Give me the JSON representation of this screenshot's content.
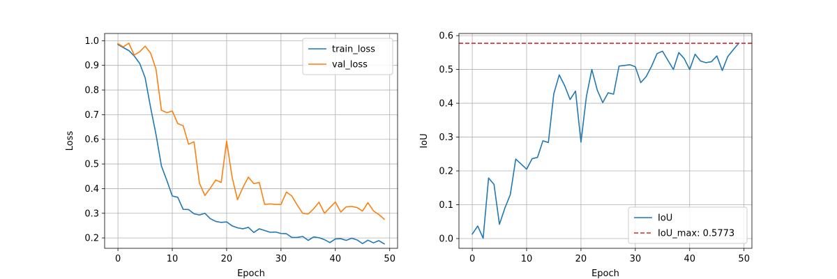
{
  "chart_data": [
    {
      "type": "line",
      "title": "",
      "xlabel": "Epoch",
      "ylabel": "Loss",
      "xlim": [
        -2.45,
        51.45
      ],
      "ylim": [
        0.1579,
        1.0293
      ],
      "xticks": [
        0,
        10,
        20,
        30,
        40,
        50
      ],
      "yticks": [
        0.2,
        0.3,
        0.4,
        0.5,
        0.6,
        0.7,
        0.8,
        0.9,
        1.0
      ],
      "grid": true,
      "legend_position": "top-right",
      "x": [
        0,
        1,
        2,
        3,
        4,
        5,
        6,
        7,
        8,
        9,
        10,
        11,
        12,
        13,
        14,
        15,
        16,
        17,
        18,
        19,
        20,
        21,
        22,
        23,
        24,
        25,
        26,
        27,
        28,
        29,
        30,
        31,
        32,
        33,
        34,
        35,
        36,
        37,
        38,
        39,
        40,
        41,
        42,
        43,
        44,
        45,
        46,
        47,
        48,
        49
      ],
      "series": [
        {
          "name": "train_loss",
          "color": "#1f77b4",
          "values": [
            0.985,
            0.972,
            0.96,
            0.938,
            0.908,
            0.85,
            0.73,
            0.62,
            0.492,
            0.433,
            0.37,
            0.365,
            0.316,
            0.315,
            0.298,
            0.293,
            0.3,
            0.278,
            0.267,
            0.263,
            0.265,
            0.249,
            0.241,
            0.237,
            0.243,
            0.222,
            0.237,
            0.23,
            0.223,
            0.224,
            0.218,
            0.217,
            0.202,
            0.202,
            0.206,
            0.19,
            0.204,
            0.201,
            0.193,
            0.181,
            0.196,
            0.197,
            0.19,
            0.199,
            0.192,
            0.177,
            0.191,
            0.18,
            0.189,
            0.176
          ]
        },
        {
          "name": "val_loss",
          "color": "#ff7f0e",
          "values": [
            0.988,
            0.975,
            0.99,
            0.942,
            0.955,
            0.978,
            0.95,
            0.885,
            0.718,
            0.708,
            0.715,
            0.664,
            0.655,
            0.58,
            0.59,
            0.422,
            0.372,
            0.402,
            0.435,
            0.425,
            0.593,
            0.447,
            0.355,
            0.405,
            0.447,
            0.42,
            0.425,
            0.336,
            0.338,
            0.336,
            0.336,
            0.386,
            0.37,
            0.333,
            0.3,
            0.297,
            0.318,
            0.345,
            0.3,
            0.323,
            0.346,
            0.305,
            0.326,
            0.328,
            0.323,
            0.309,
            0.343,
            0.31,
            0.295,
            0.276
          ]
        }
      ]
    },
    {
      "type": "line",
      "title": "",
      "xlabel": "Epoch",
      "ylabel": "IoU",
      "xlim": [
        -2.45,
        51.45
      ],
      "ylim": [
        -0.0289,
        0.6064
      ],
      "xticks": [
        0,
        10,
        20,
        30,
        40,
        50
      ],
      "yticks": [
        0.0,
        0.1,
        0.2,
        0.3,
        0.4,
        0.5,
        0.6
      ],
      "grid": true,
      "legend_position": "bottom-right",
      "x": [
        0,
        1,
        2,
        3,
        4,
        5,
        6,
        7,
        8,
        9,
        10,
        11,
        12,
        13,
        14,
        15,
        16,
        17,
        18,
        19,
        20,
        21,
        22,
        23,
        24,
        25,
        26,
        27,
        28,
        29,
        30,
        31,
        32,
        33,
        34,
        35,
        36,
        37,
        38,
        39,
        40,
        41,
        42,
        43,
        44,
        45,
        46,
        47,
        48,
        49
      ],
      "series": [
        {
          "name": "IoU",
          "color": "#1f77b4",
          "values": [
            0.013,
            0.037,
            0.001,
            0.179,
            0.16,
            0.042,
            0.09,
            0.13,
            0.235,
            0.22,
            0.205,
            0.236,
            0.24,
            0.289,
            0.284,
            0.428,
            0.484,
            0.452,
            0.411,
            0.436,
            0.285,
            0.42,
            0.5,
            0.439,
            0.402,
            0.431,
            0.427,
            0.51,
            0.512,
            0.514,
            0.508,
            0.461,
            0.479,
            0.51,
            0.547,
            0.554,
            0.527,
            0.5,
            0.55,
            0.532,
            0.5,
            0.545,
            0.525,
            0.52,
            0.523,
            0.54,
            0.497,
            0.538,
            0.558,
            0.577
          ]
        }
      ],
      "hline": {
        "name": "IoU_max: 0.5773",
        "value": 0.5773,
        "color": "#d62728",
        "style": "dashed"
      }
    }
  ]
}
